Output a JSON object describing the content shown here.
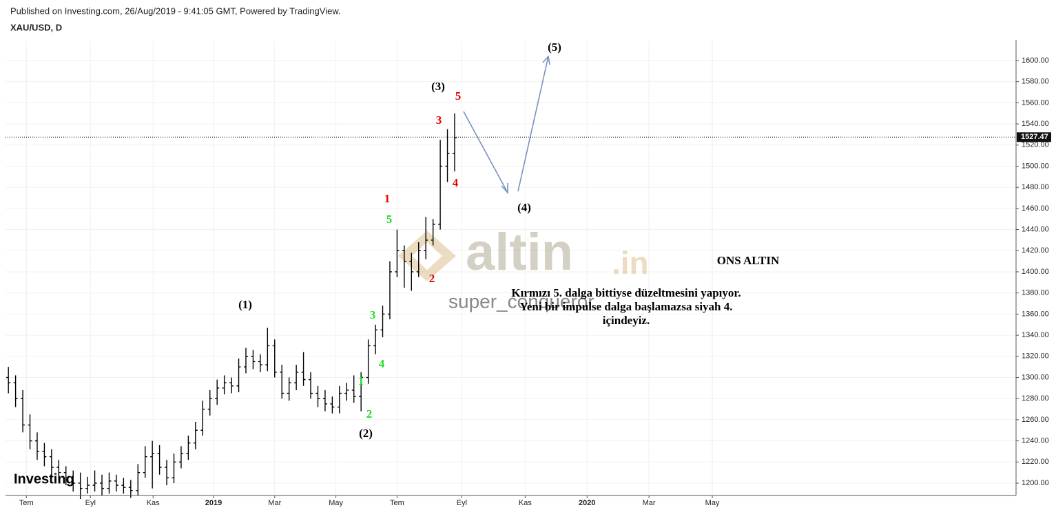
{
  "chart_data": {
    "type": "ohlc",
    "header": "Published on Investing.com, 26/Aug/2019 - 9:41:05 GMT, Powered by TradingView.",
    "symbol": "XAU/USD, D",
    "brand": "Investing",
    "watermark": "altin",
    "watermark_suffix": ".in",
    "watermark_user": "super_conqueror",
    "note_title": "ONS ALTIN",
    "note_lines": [
      "Kırmızı 5. dalga bittiyse düzeltmesini yapıyor.",
      "Yeni bir impulse dalga başlamazsa siyah 4.",
      "içindeyiz."
    ],
    "color": "#000000",
    "categories": [
      null,
      null,
      null,
      null,
      null,
      null,
      null,
      null,
      null,
      null,
      null,
      null,
      null,
      null,
      null,
      null,
      null,
      null,
      null,
      null,
      null,
      null,
      null,
      null,
      null,
      null,
      null,
      null,
      null,
      null,
      null,
      null,
      null,
      null,
      null,
      null,
      null,
      null,
      null,
      null,
      null,
      null,
      null,
      null,
      null,
      null,
      null,
      null,
      null,
      null,
      null,
      null,
      null,
      null,
      null,
      null,
      null,
      null,
      null,
      null,
      null,
      null,
      null
    ],
    "open": [
      1300,
      1295,
      1280,
      1255,
      1240,
      1230,
      1225,
      1215,
      1210,
      1205,
      1200,
      1195,
      1198,
      1200,
      1195,
      1202,
      1198,
      1196,
      1193,
      1210,
      1225,
      1228,
      1215,
      1205,
      1220,
      1228,
      1238,
      1250,
      1270,
      1280,
      1290,
      1295,
      1292,
      1310,
      1320,
      1315,
      1312,
      1330,
      1305,
      1285,
      1295,
      1305,
      1298,
      1285,
      1280,
      1275,
      1272,
      1285,
      1288,
      1282,
      1300,
      1330,
      1345,
      1360,
      1400,
      1420,
      1410,
      1400,
      1420,
      1430,
      1445,
      1500,
      1512
    ],
    "high": [
      1310,
      1302,
      1288,
      1265,
      1248,
      1238,
      1232,
      1222,
      1216,
      1212,
      1210,
      1206,
      1212,
      1208,
      1210,
      1208,
      1205,
      1203,
      1218,
      1235,
      1240,
      1236,
      1222,
      1228,
      1235,
      1245,
      1258,
      1278,
      1288,
      1298,
      1302,
      1300,
      1318,
      1328,
      1326,
      1322,
      1347,
      1336,
      1312,
      1300,
      1312,
      1324,
      1305,
      1292,
      1288,
      1282,
      1292,
      1295,
      1302,
      1305,
      1336,
      1350,
      1368,
      1410,
      1440,
      1425,
      1418,
      1428,
      1452,
      1450,
      1525,
      1535,
      1550
    ],
    "low": [
      1285,
      1272,
      1248,
      1232,
      1222,
      1216,
      1208,
      1202,
      1198,
      1192,
      1185,
      1190,
      1192,
      1188,
      1190,
      1192,
      1190,
      1186,
      1188,
      1205,
      1195,
      1208,
      1198,
      1200,
      1214,
      1222,
      1232,
      1245,
      1264,
      1274,
      1284,
      1285,
      1286,
      1304,
      1308,
      1305,
      1306,
      1300,
      1280,
      1278,
      1288,
      1292,
      1280,
      1272,
      1268,
      1266,
      1266,
      1278,
      1276,
      1268,
      1294,
      1322,
      1338,
      1355,
      1395,
      1385,
      1382,
      1395,
      1412,
      1425,
      1440,
      1485,
      1495
    ],
    "close": [
      1295,
      1280,
      1255,
      1240,
      1230,
      1225,
      1215,
      1210,
      1205,
      1200,
      1195,
      1198,
      1200,
      1195,
      1202,
      1198,
      1196,
      1193,
      1210,
      1225,
      1228,
      1215,
      1205,
      1220,
      1228,
      1238,
      1250,
      1270,
      1280,
      1290,
      1295,
      1292,
      1310,
      1320,
      1315,
      1312,
      1330,
      1305,
      1285,
      1295,
      1305,
      1298,
      1285,
      1280,
      1275,
      1272,
      1285,
      1288,
      1282,
      1300,
      1330,
      1345,
      1360,
      1400,
      1420,
      1410,
      1400,
      1420,
      1430,
      1445,
      1500,
      1512,
      1527
    ],
    "last_price": 1527.47,
    "xlim": [
      -0.4,
      140
    ],
    "xticks": [
      {
        "value": 2.5,
        "label": "Tem"
      },
      {
        "value": 11.4,
        "label": "Eyl"
      },
      {
        "value": 20.1,
        "label": "Kas"
      },
      {
        "value": 28.5,
        "label": "2019"
      },
      {
        "value": 37,
        "label": "Mar"
      },
      {
        "value": 45.5,
        "label": "May"
      },
      {
        "value": 54,
        "label": "Tem"
      },
      {
        "value": 63,
        "label": "Eyl"
      },
      {
        "value": 71.8,
        "label": "Kas"
      },
      {
        "value": 80.4,
        "label": "2020"
      },
      {
        "value": 89,
        "label": "Mar"
      },
      {
        "value": 97.8,
        "label": "May"
      }
    ],
    "ylim": [
      1189.6,
      1618.2
    ],
    "yticks": [
      {
        "value": 1200,
        "label": "1200.00"
      },
      {
        "value": 1220,
        "label": "1220.00"
      },
      {
        "value": 1240,
        "label": "1240.00"
      },
      {
        "value": 1260,
        "label": "1260.00"
      },
      {
        "value": 1280,
        "label": "1280.00"
      },
      {
        "value": 1300,
        "label": "1300.00"
      },
      {
        "value": 1320,
        "label": "1320.00"
      },
      {
        "value": 1340,
        "label": "1340.00"
      },
      {
        "value": 1360,
        "label": "1360.00"
      },
      {
        "value": 1380,
        "label": "1380.00"
      },
      {
        "value": 1400,
        "label": "1400.00"
      },
      {
        "value": 1420,
        "label": "1420.00"
      },
      {
        "value": 1440,
        "label": "1440.00"
      },
      {
        "value": 1460,
        "label": "1460.00"
      },
      {
        "value": 1480,
        "label": "1480.00"
      },
      {
        "value": 1500,
        "label": "1500.00"
      },
      {
        "value": 1520,
        "label": "1520.00"
      },
      {
        "value": 1540,
        "label": "1540.00"
      },
      {
        "value": 1560,
        "label": "1560.00"
      },
      {
        "value": 1580,
        "label": "1580.00"
      },
      {
        "value": 1600,
        "label": "1600.00"
      }
    ],
    "grid": true,
    "annotations": [
      {
        "text": "(5)",
        "color": "#000000"
      },
      {
        "text": "(3)",
        "color": "#000000"
      },
      {
        "text": "5",
        "color": "#e00000"
      },
      {
        "text": "3",
        "color": "#e00000"
      },
      {
        "text": "4",
        "color": "#e00000"
      },
      {
        "text": "(4)",
        "color": "#000000"
      },
      {
        "text": "1",
        "color": "#e00000"
      },
      {
        "text": "5",
        "color": "#22dd22"
      },
      {
        "text": "2",
        "color": "#e00000"
      },
      {
        "text": "(1)",
        "color": "#000000"
      },
      {
        "text": "3",
        "color": "#22dd22"
      },
      {
        "text": "4",
        "color": "#22dd22"
      },
      {
        "text": "1",
        "color": "#22dd22"
      },
      {
        "text": "2",
        "color": "#22dd22"
      },
      {
        "text": "(2)",
        "color": "#000000"
      }
    ]
  }
}
